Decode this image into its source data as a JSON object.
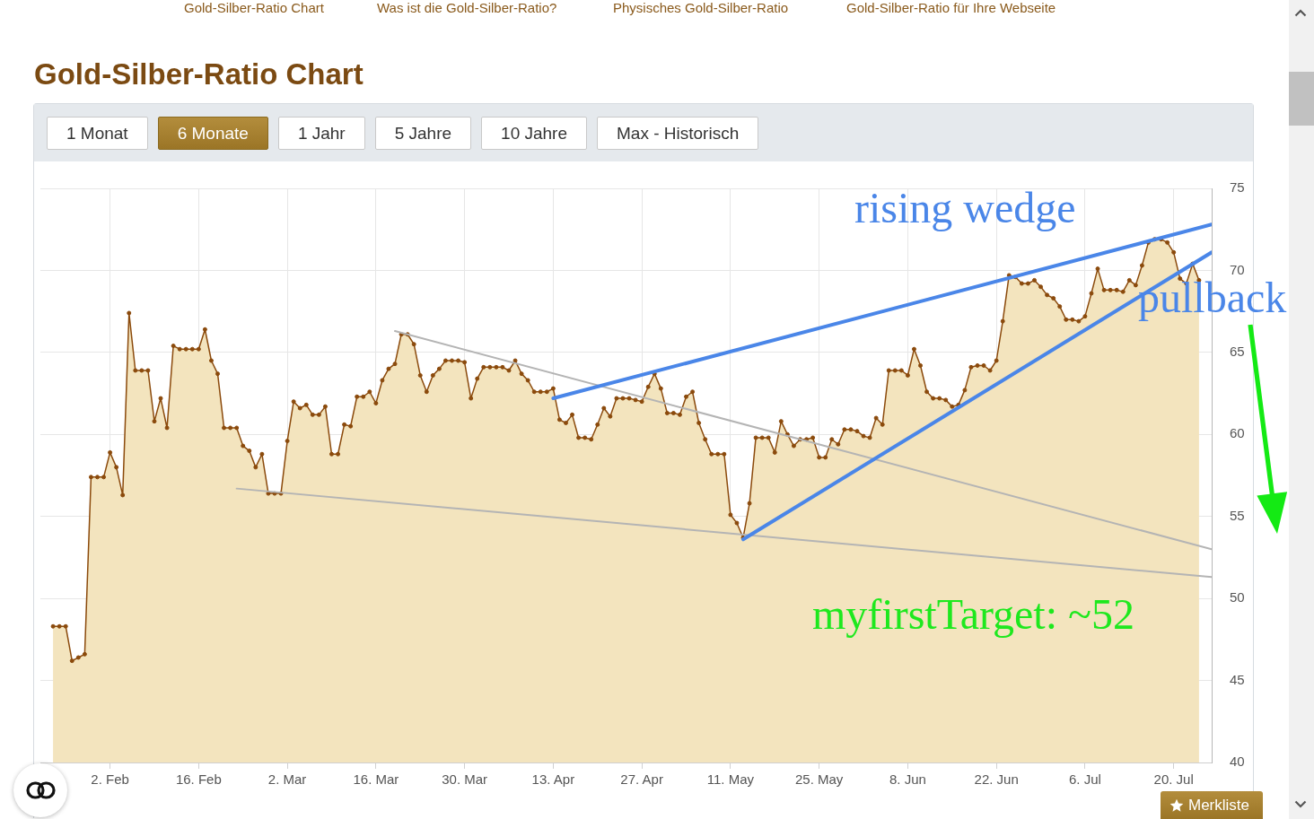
{
  "chart_data": {
    "type": "area",
    "title": "Gold-Silber-Ratio Chart",
    "annotations": [
      "Gold-Silber-Ratio Chart",
      "Was ist die Gold-Silber-Ratio?",
      "Physisches Gold-Silber-Ratio",
      "Gold-Silber-Ratio für Ihre Webseite",
      "1 Monat",
      "6 Monate",
      "1 Jahr",
      "5 Jahre",
      "10 Jahre",
      "Max - Historisch",
      "rising wedge",
      "pullback",
      "myfirstTarget: ~52",
      "Merkliste"
    ],
    "series": [
      {
        "color": "#8b4a0c",
        "x": [
          "--01-24",
          "--01-25",
          "--01-26",
          "--01-27",
          "--01-28",
          "--01-29",
          "--01-30",
          "--01-31",
          "--02-01",
          "--02-02",
          "--02-03",
          "--02-04",
          "--02-05",
          "--02-06",
          "--02-07",
          "--02-08",
          "--02-09",
          "--02-10",
          "--02-11",
          "--02-12",
          "--02-13",
          "--02-14",
          "--02-15",
          "--02-16",
          "--02-17",
          "--02-18",
          "--02-19",
          "--02-20",
          "--02-21",
          "--02-22",
          "--02-23",
          "--02-24",
          "--02-25",
          "--02-26",
          "--02-27",
          "--02-28",
          "--03-01",
          "--03-02",
          "--03-03",
          "--03-04",
          "--03-05",
          "--03-06",
          "--03-07",
          "--03-08",
          "--03-09",
          "--03-10",
          "--03-11",
          "--03-12",
          "--03-13",
          "--03-14",
          "--03-15",
          "--03-16",
          "--03-17",
          "--03-18",
          "--03-19",
          "--03-20",
          "--03-21",
          "--03-22",
          "--03-23",
          "--03-24",
          "--03-25",
          "--03-26",
          "--03-27",
          "--03-28",
          "--03-29",
          "--03-30",
          "--03-31",
          "--04-01",
          "--04-02",
          "--04-03",
          "--04-04",
          "--04-05",
          "--04-06",
          "--04-07",
          "--04-08",
          "--04-09",
          "--04-10",
          "--04-11",
          "--04-12",
          "--04-13",
          "--04-14",
          "--04-15",
          "--04-16",
          "--04-17",
          "--04-18",
          "--04-19",
          "--04-20",
          "--04-21",
          "--04-22",
          "--04-23",
          "--04-24",
          "--04-25",
          "--04-26",
          "--04-27",
          "--04-28",
          "--04-29",
          "--04-30",
          "--05-01",
          "--05-02",
          "--05-03",
          "--05-04",
          "--05-05",
          "--05-06",
          "--05-07",
          "--05-08",
          "--05-09",
          "--05-10",
          "--05-11",
          "--05-12",
          "--05-13",
          "--05-14",
          "--05-15",
          "--05-16",
          "--05-17",
          "--05-18",
          "--05-19",
          "--05-20",
          "--05-21",
          "--05-22",
          "--05-23",
          "--05-24",
          "--05-25",
          "--05-26",
          "--05-27",
          "--05-28",
          "--05-29",
          "--05-30",
          "--05-31",
          "--06-01",
          "--06-02",
          "--06-03",
          "--06-04",
          "--06-05",
          "--06-06",
          "--06-07",
          "--06-08",
          "--06-09",
          "--06-10",
          "--06-11",
          "--06-12",
          "--06-13",
          "--06-14",
          "--06-15",
          "--06-16",
          "--06-17",
          "--06-18",
          "--06-19",
          "--06-20",
          "--06-21",
          "--06-22",
          "--06-23",
          "--06-24",
          "--06-25",
          "--06-26",
          "--06-27",
          "--06-28",
          "--06-29",
          "--06-30",
          "--07-01",
          "--07-02",
          "--07-03",
          "--07-04",
          "--07-05",
          "--07-06",
          "--07-07",
          "--07-08",
          "--07-09",
          "--07-10",
          "--07-11",
          "--07-12",
          "--07-13",
          "--07-14",
          "--07-15",
          "--07-16",
          "--07-17",
          "--07-18",
          "--07-19",
          "--07-20",
          "--07-21",
          "--07-22",
          "--07-23",
          "--07-24"
        ],
        "values": [
          48.3,
          48.3,
          48.3,
          46.2,
          46.4,
          46.6,
          57.4,
          57.4,
          57.4,
          58.9,
          58.0,
          56.3,
          67.4,
          63.9,
          63.9,
          63.9,
          60.8,
          62.2,
          60.4,
          65.4,
          65.2,
          65.2,
          65.2,
          65.2,
          66.4,
          64.5,
          63.7,
          60.4,
          60.4,
          60.4,
          59.3,
          59.0,
          58.0,
          58.8,
          56.4,
          56.4,
          56.4,
          59.6,
          62.0,
          61.6,
          61.8,
          61.2,
          61.2,
          61.7,
          58.8,
          58.8,
          60.6,
          60.5,
          62.3,
          62.3,
          62.6,
          61.9,
          63.3,
          64.0,
          64.3,
          66.1,
          66.1,
          65.5,
          63.6,
          62.6,
          63.6,
          64.0,
          64.5,
          64.5,
          64.5,
          64.4,
          62.2,
          63.4,
          64.1,
          64.1,
          64.1,
          64.1,
          63.9,
          64.5,
          63.7,
          63.3,
          62.6,
          62.6,
          62.6,
          62.8,
          60.9,
          60.7,
          61.2,
          59.8,
          59.8,
          59.7,
          60.6,
          61.6,
          61.1,
          62.2,
          62.2,
          62.2,
          62.1,
          62.0,
          62.9,
          63.7,
          62.8,
          61.3,
          61.3,
          61.2,
          62.3,
          62.6,
          60.7,
          59.7,
          58.8,
          58.8,
          58.8,
          55.1,
          54.6,
          53.7,
          55.8,
          59.8,
          59.8,
          59.8,
          58.9,
          60.8,
          60.0,
          59.3,
          59.7,
          59.7,
          59.8,
          58.6,
          58.6,
          59.7,
          59.4,
          60.3,
          60.3,
          60.2,
          59.9,
          59.8,
          61.0,
          60.6,
          63.9,
          63.9,
          63.9,
          63.6,
          65.2,
          64.2,
          62.6,
          62.2,
          62.2,
          62.1,
          61.7,
          61.8,
          62.7,
          64.1,
          64.2,
          64.2,
          63.9,
          64.5,
          66.9,
          69.7,
          69.6,
          69.2,
          69.2,
          69.4,
          69.0,
          68.5,
          68.3,
          67.8,
          67.0,
          67.0,
          66.9,
          67.2,
          68.6,
          70.1,
          68.8,
          68.8,
          68.8,
          68.7,
          69.4,
          69.1,
          70.3,
          71.7,
          71.9,
          71.9,
          71.7,
          71.1,
          69.5,
          69.2,
          70.4,
          69.4
        ]
      },
      {
        "type": "line",
        "color": "#4a86e8",
        "marker": "none",
        "x": [
          "--04-13",
          "--07-26"
        ],
        "values": [
          62.2,
          72.8
        ]
      },
      {
        "type": "line",
        "color": "#4a86e8",
        "marker": "none",
        "x": [
          "--05-13",
          "--07-26"
        ],
        "values": [
          53.6,
          71.1
        ]
      },
      {
        "type": "line",
        "color": "#b4b4b4",
        "marker": "none",
        "x": [
          "--03-19",
          "--07-26"
        ],
        "values": [
          66.3,
          53.0
        ]
      },
      {
        "type": "line",
        "color": "#b4b4b4",
        "marker": "none",
        "x": [
          "--02-22",
          "--07-26"
        ],
        "values": [
          56.7,
          51.3
        ]
      }
    ],
    "xlim": [
      "--01-22",
      "--07-26"
    ],
    "xticks": [
      {
        "value": "--02-02",
        "label": "2. Feb"
      },
      {
        "value": "--02-16",
        "label": "16. Feb"
      },
      {
        "value": "--03-02",
        "label": "2. Mar"
      },
      {
        "value": "--03-16",
        "label": "16. Mar"
      },
      {
        "value": "--03-30",
        "label": "30. Mar"
      },
      {
        "value": "--04-13",
        "label": "13. Apr"
      },
      {
        "value": "--04-27",
        "label": "27. Apr"
      },
      {
        "value": "--05-11",
        "label": "11. May"
      },
      {
        "value": "--05-25",
        "label": "25. May"
      },
      {
        "value": "--06-08",
        "label": "8. Jun"
      },
      {
        "value": "--06-22",
        "label": "22. Jun"
      },
      {
        "value": "--07-06",
        "label": "6. Jul"
      },
      {
        "value": "--07-20",
        "label": "20. Jul"
      }
    ],
    "ylim": [
      40,
      75
    ],
    "yticks": [
      40,
      45,
      50,
      55,
      60,
      65,
      70,
      75
    ],
    "grid": true,
    "marker": "circle"
  }
}
